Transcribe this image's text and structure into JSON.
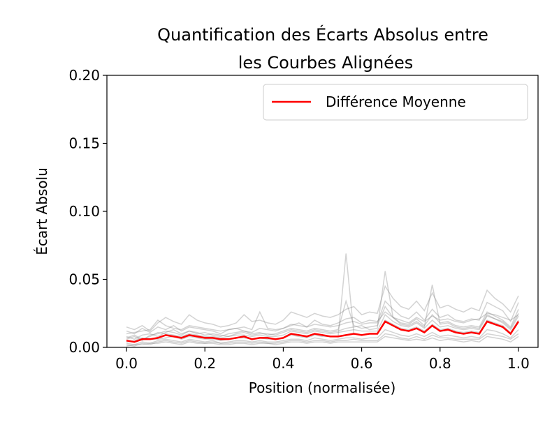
{
  "chart_data": {
    "type": "line",
    "title": [
      "Quantification des Écarts Absolus entre",
      "les Courbes Alignées"
    ],
    "xlabel": "Position (normalisée)",
    "ylabel": "Écart Absolu",
    "xlim": [
      -0.05,
      1.05
    ],
    "ylim": [
      0.0,
      0.2
    ],
    "xticks": [
      0.0,
      0.2,
      0.4,
      0.6,
      0.8,
      1.0
    ],
    "xtick_labels": [
      "0.0",
      "0.2",
      "0.4",
      "0.6",
      "0.8",
      "1.0"
    ],
    "yticks": [
      0.0,
      0.05,
      0.1,
      0.15,
      0.2
    ],
    "ytick_labels": [
      "0.00",
      "0.05",
      "0.10",
      "0.15",
      "0.20"
    ],
    "grid": false,
    "legend": {
      "placement": "top-right",
      "entries": [
        "Différence Moyenne"
      ]
    },
    "colors": {
      "mean": "#ff0000",
      "individual": "#808080"
    },
    "series": [
      {
        "name": "Différence Moyenne",
        "color": "#ff0000",
        "x": [
          0.0,
          0.02,
          0.04,
          0.06,
          0.08,
          0.1,
          0.12,
          0.14,
          0.16,
          0.18,
          0.2,
          0.22,
          0.24,
          0.26,
          0.28,
          0.3,
          0.32,
          0.34,
          0.36,
          0.38,
          0.4,
          0.42,
          0.44,
          0.46,
          0.48,
          0.5,
          0.52,
          0.54,
          0.56,
          0.58,
          0.6,
          0.62,
          0.64,
          0.66,
          0.68,
          0.7,
          0.72,
          0.74,
          0.76,
          0.78,
          0.8,
          0.82,
          0.84,
          0.86,
          0.88,
          0.9,
          0.92,
          0.94,
          0.96,
          0.98,
          1.0
        ],
        "y": [
          0.005,
          0.004,
          0.006,
          0.006,
          0.007,
          0.009,
          0.008,
          0.007,
          0.009,
          0.008,
          0.007,
          0.007,
          0.006,
          0.006,
          0.007,
          0.008,
          0.006,
          0.007,
          0.007,
          0.006,
          0.007,
          0.01,
          0.009,
          0.008,
          0.01,
          0.009,
          0.008,
          0.008,
          0.009,
          0.01,
          0.009,
          0.01,
          0.01,
          0.019,
          0.016,
          0.013,
          0.012,
          0.014,
          0.011,
          0.016,
          0.012,
          0.013,
          0.011,
          0.01,
          0.011,
          0.01,
          0.019,
          0.017,
          0.015,
          0.01,
          0.019
        ]
      }
    ],
    "individual_curves": [
      [
        0.012,
        0.01,
        0.014,
        0.011,
        0.015,
        0.013,
        0.016,
        0.012,
        0.015,
        0.014,
        0.013,
        0.012,
        0.01,
        0.013,
        0.014,
        0.012,
        0.011,
        0.014,
        0.013,
        0.012,
        0.014,
        0.016,
        0.018,
        0.015,
        0.02,
        0.017,
        0.016,
        0.018,
        0.021,
        0.022,
        0.018,
        0.02,
        0.019,
        0.026,
        0.022,
        0.02,
        0.018,
        0.022,
        0.019,
        0.023,
        0.02,
        0.021,
        0.019,
        0.018,
        0.02,
        0.021,
        0.025,
        0.024,
        0.022,
        0.02,
        0.024
      ],
      [
        0.006,
        0.008,
        0.005,
        0.009,
        0.01,
        0.012,
        0.011,
        0.009,
        0.012,
        0.01,
        0.011,
        0.009,
        0.008,
        0.01,
        0.011,
        0.012,
        0.01,
        0.011,
        0.009,
        0.01,
        0.012,
        0.014,
        0.013,
        0.012,
        0.014,
        0.013,
        0.012,
        0.013,
        0.034,
        0.016,
        0.014,
        0.015,
        0.016,
        0.03,
        0.022,
        0.018,
        0.017,
        0.021,
        0.016,
        0.024,
        0.018,
        0.019,
        0.016,
        0.015,
        0.016,
        0.015,
        0.026,
        0.023,
        0.02,
        0.015,
        0.028
      ],
      [
        0.003,
        0.002,
        0.004,
        0.003,
        0.005,
        0.006,
        0.005,
        0.004,
        0.006,
        0.005,
        0.004,
        0.005,
        0.003,
        0.004,
        0.005,
        0.005,
        0.004,
        0.005,
        0.004,
        0.004,
        0.005,
        0.006,
        0.006,
        0.005,
        0.007,
        0.006,
        0.005,
        0.006,
        0.007,
        0.007,
        0.006,
        0.007,
        0.007,
        0.013,
        0.011,
        0.009,
        0.008,
        0.01,
        0.008,
        0.011,
        0.008,
        0.009,
        0.008,
        0.007,
        0.008,
        0.007,
        0.013,
        0.012,
        0.01,
        0.007,
        0.013
      ],
      [
        0.015,
        0.013,
        0.016,
        0.012,
        0.018,
        0.022,
        0.019,
        0.017,
        0.024,
        0.02,
        0.018,
        0.017,
        0.015,
        0.016,
        0.018,
        0.024,
        0.019,
        0.02,
        0.018,
        0.017,
        0.02,
        0.026,
        0.024,
        0.022,
        0.025,
        0.023,
        0.022,
        0.024,
        0.028,
        0.03,
        0.024,
        0.026,
        0.025,
        0.045,
        0.036,
        0.03,
        0.028,
        0.034,
        0.027,
        0.04,
        0.029,
        0.031,
        0.028,
        0.026,
        0.029,
        0.027,
        0.042,
        0.036,
        0.032,
        0.026,
        0.038
      ],
      [
        0.001,
        0.002,
        0.002,
        0.003,
        0.003,
        0.004,
        0.003,
        0.002,
        0.004,
        0.003,
        0.003,
        0.003,
        0.002,
        0.002,
        0.003,
        0.003,
        0.002,
        0.003,
        0.003,
        0.002,
        0.003,
        0.004,
        0.004,
        0.003,
        0.004,
        0.004,
        0.003,
        0.004,
        0.004,
        0.004,
        0.004,
        0.004,
        0.004,
        0.008,
        0.007,
        0.006,
        0.005,
        0.006,
        0.005,
        0.007,
        0.005,
        0.006,
        0.005,
        0.004,
        0.005,
        0.004,
        0.008,
        0.007,
        0.006,
        0.004,
        0.008
      ],
      [
        0.008,
        0.006,
        0.009,
        0.01,
        0.008,
        0.011,
        0.013,
        0.01,
        0.012,
        0.011,
        0.009,
        0.01,
        0.009,
        0.008,
        0.01,
        0.011,
        0.009,
        0.01,
        0.01,
        0.009,
        0.011,
        0.013,
        0.012,
        0.011,
        0.013,
        0.012,
        0.011,
        0.012,
        0.014,
        0.015,
        0.016,
        0.013,
        0.014,
        0.056,
        0.022,
        0.017,
        0.016,
        0.019,
        0.015,
        0.046,
        0.017,
        0.018,
        0.015,
        0.014,
        0.015,
        0.014,
        0.024,
        0.021,
        0.019,
        0.014,
        0.025
      ],
      [
        0.004,
        0.005,
        0.007,
        0.006,
        0.006,
        0.007,
        0.008,
        0.006,
        0.008,
        0.007,
        0.006,
        0.006,
        0.005,
        0.006,
        0.007,
        0.007,
        0.006,
        0.007,
        0.006,
        0.006,
        0.007,
        0.009,
        0.008,
        0.007,
        0.009,
        0.008,
        0.008,
        0.008,
        0.069,
        0.01,
        0.009,
        0.01,
        0.01,
        0.02,
        0.017,
        0.014,
        0.013,
        0.015,
        0.012,
        0.017,
        0.013,
        0.014,
        0.012,
        0.011,
        0.012,
        0.011,
        0.02,
        0.018,
        0.016,
        0.011,
        0.02
      ],
      [
        0.01,
        0.011,
        0.012,
        0.013,
        0.02,
        0.016,
        0.014,
        0.013,
        0.016,
        0.015,
        0.014,
        0.013,
        0.012,
        0.013,
        0.014,
        0.015,
        0.013,
        0.026,
        0.014,
        0.013,
        0.014,
        0.017,
        0.016,
        0.015,
        0.017,
        0.016,
        0.015,
        0.016,
        0.018,
        0.019,
        0.017,
        0.018,
        0.018,
        0.034,
        0.028,
        0.023,
        0.021,
        0.026,
        0.02,
        0.028,
        0.022,
        0.024,
        0.02,
        0.019,
        0.021,
        0.02,
        0.033,
        0.03,
        0.027,
        0.019,
        0.033
      ],
      [
        0.002,
        0.001,
        0.003,
        0.002,
        0.004,
        0.005,
        0.004,
        0.003,
        0.005,
        0.004,
        0.003,
        0.004,
        0.003,
        0.003,
        0.004,
        0.004,
        0.003,
        0.004,
        0.003,
        0.003,
        0.004,
        0.005,
        0.005,
        0.004,
        0.005,
        0.005,
        0.004,
        0.005,
        0.005,
        0.006,
        0.005,
        0.005,
        0.005,
        0.01,
        0.009,
        0.007,
        0.006,
        0.008,
        0.006,
        0.009,
        0.007,
        0.007,
        0.006,
        0.006,
        0.006,
        0.006,
        0.01,
        0.009,
        0.008,
        0.006,
        0.01
      ],
      [
        0.007,
        0.009,
        0.006,
        0.008,
        0.011,
        0.01,
        0.009,
        0.008,
        0.01,
        0.009,
        0.008,
        0.008,
        0.007,
        0.008,
        0.009,
        0.009,
        0.008,
        0.009,
        0.008,
        0.008,
        0.009,
        0.012,
        0.011,
        0.01,
        0.012,
        0.011,
        0.01,
        0.011,
        0.012,
        0.013,
        0.012,
        0.012,
        0.012,
        0.024,
        0.019,
        0.016,
        0.015,
        0.018,
        0.014,
        0.02,
        0.015,
        0.016,
        0.014,
        0.013,
        0.014,
        0.013,
        0.023,
        0.021,
        0.018,
        0.013,
        0.023
      ]
    ]
  }
}
